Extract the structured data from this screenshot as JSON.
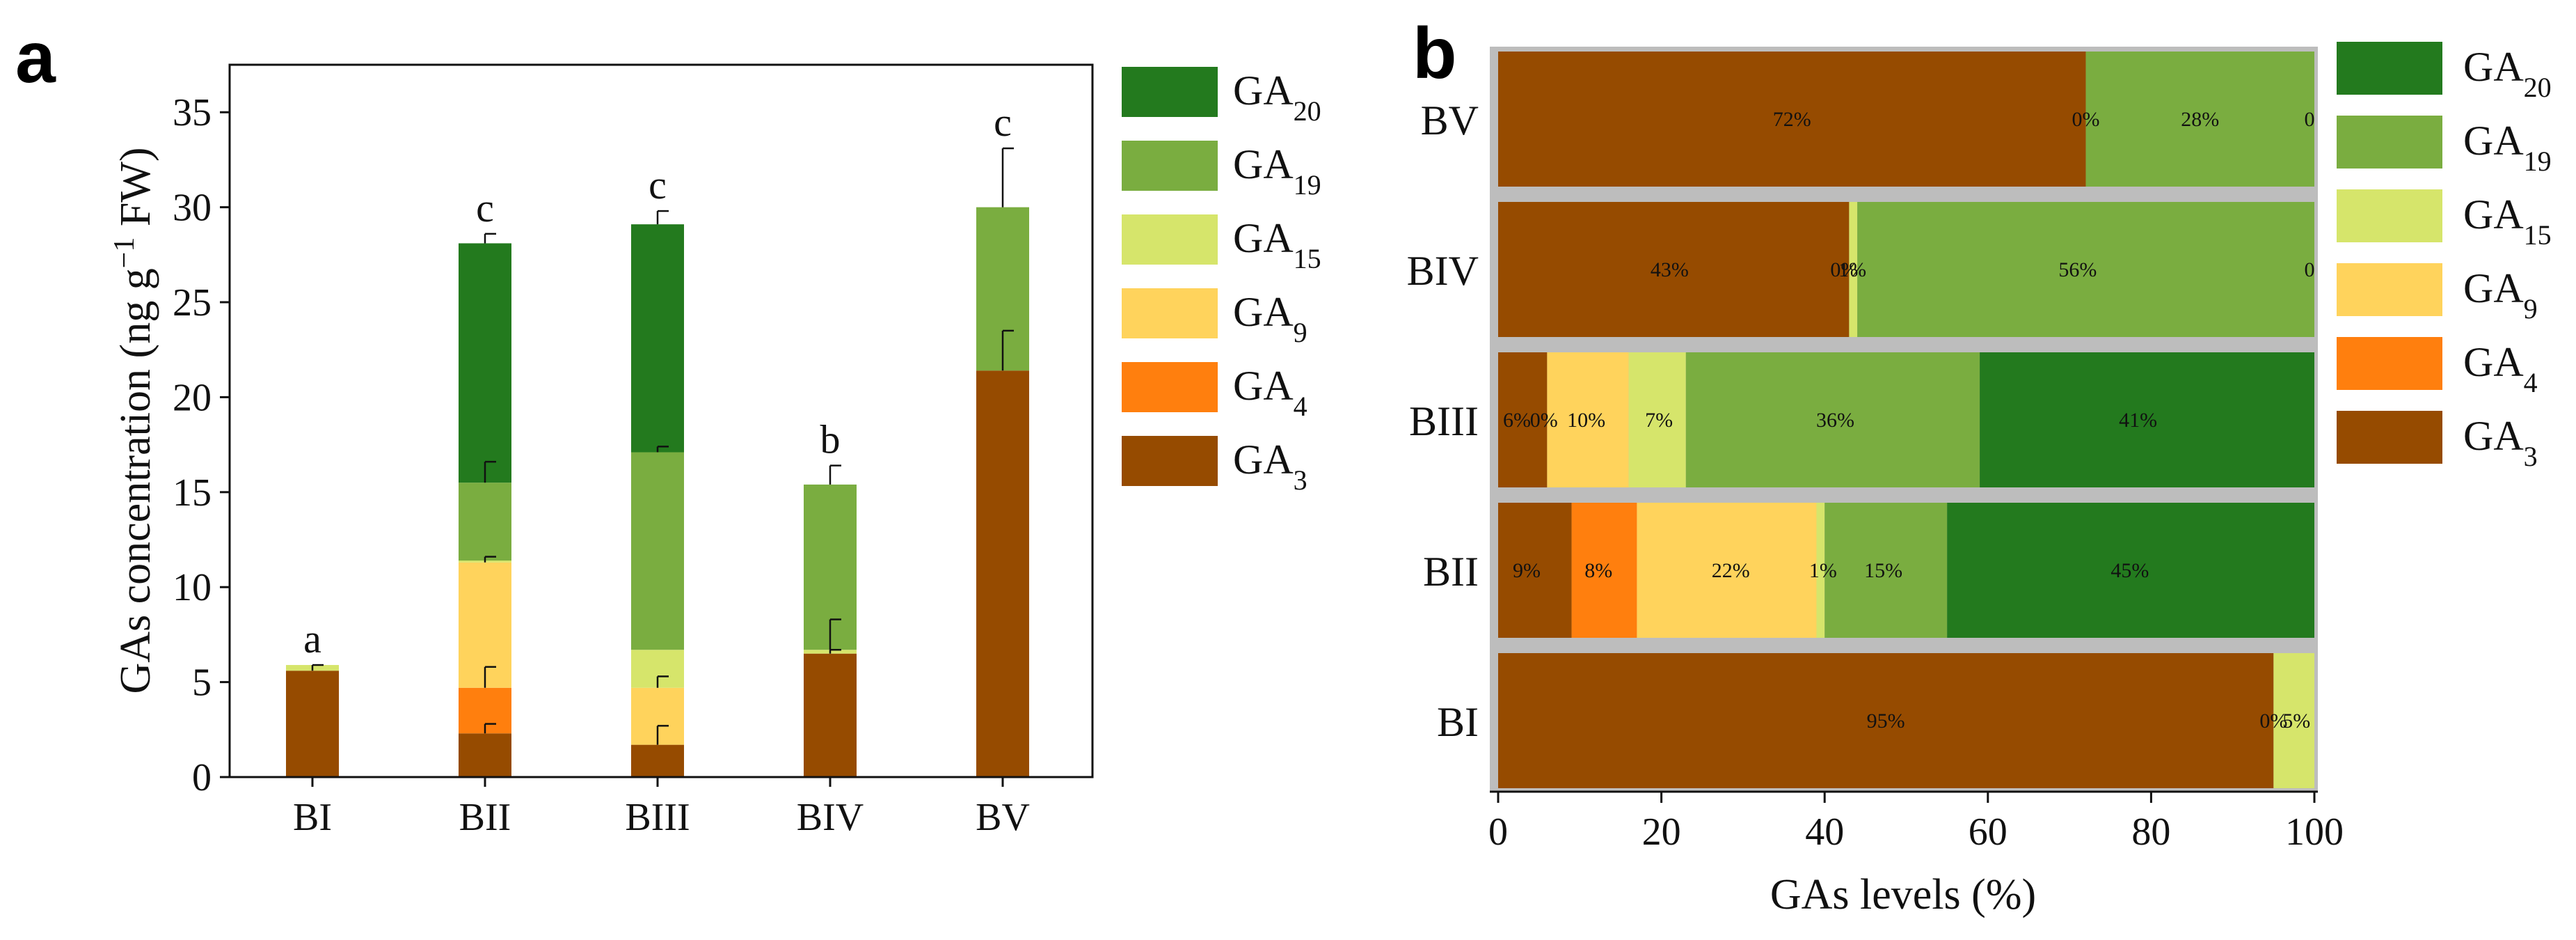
{
  "panels": {
    "a": {
      "label": "a"
    },
    "b": {
      "label": "b"
    }
  },
  "series_meta": [
    {
      "key": "GA3",
      "base": "GA",
      "sub": "3",
      "color": "#964B00"
    },
    {
      "key": "GA4",
      "base": "GA",
      "sub": "4",
      "color": "#FF7F0E"
    },
    {
      "key": "GA9",
      "base": "GA",
      "sub": "9",
      "color": "#FFD35C"
    },
    {
      "key": "GA15",
      "base": "GA",
      "sub": "15",
      "color": "#D6E56B"
    },
    {
      "key": "GA19",
      "base": "GA",
      "sub": "19",
      "color": "#7AAD40"
    },
    {
      "key": "GA20",
      "base": "GA",
      "sub": "20",
      "color": "#237A1E"
    }
  ],
  "chart_data": [
    {
      "type": "bar",
      "stacked": true,
      "panel": "a",
      "categories": [
        "BI",
        "BII",
        "BIII",
        "BIV",
        "BV"
      ],
      "ylabel_main": "GAs concentration (ng g",
      "ylabel_sup": "−1",
      "ylabel_end": " FW)",
      "xlabel": "",
      "ylim": [
        0,
        37.5
      ],
      "yticks": [
        0,
        5,
        10,
        15,
        20,
        25,
        30,
        35
      ],
      "legend_position": "right",
      "series": [
        {
          "name": "GA3",
          "values": [
            5.6,
            2.3,
            1.7,
            6.5,
            21.4
          ],
          "errors": [
            0.3,
            0.5,
            1.0,
            0.2,
            2.1
          ]
        },
        {
          "name": "GA4",
          "values": [
            0,
            2.4,
            0,
            0,
            0
          ],
          "errors": [
            0,
            1.1,
            0,
            0,
            0
          ]
        },
        {
          "name": "GA9",
          "values": [
            0,
            6.6,
            3.0,
            0,
            0
          ],
          "errors": [
            0,
            0.3,
            0.6,
            0,
            0
          ]
        },
        {
          "name": "GA15",
          "values": [
            0.3,
            0.1,
            2.0,
            0.2,
            0
          ],
          "errors": [
            0,
            0,
            0,
            1.6,
            0
          ]
        },
        {
          "name": "GA19",
          "values": [
            0,
            4.1,
            10.4,
            8.7,
            8.6
          ],
          "errors": [
            0,
            1.1,
            0.3,
            1.0,
            3.1
          ]
        },
        {
          "name": "GA20",
          "values": [
            0,
            12.6,
            12.0,
            0,
            0
          ],
          "errors": [
            0,
            0.5,
            0.7,
            0,
            0
          ]
        }
      ],
      "annotations": [
        {
          "category": "BI",
          "text": "a"
        },
        {
          "category": "BII",
          "text": "c"
        },
        {
          "category": "BIII",
          "text": "c"
        },
        {
          "category": "BIV",
          "text": "b"
        },
        {
          "category": "BV",
          "text": "c"
        }
      ]
    },
    {
      "type": "bar",
      "orientation": "horizontal",
      "stacked": true,
      "panel": "b",
      "categories": [
        "BV",
        "BIV",
        "BIII",
        "BII",
        "BI"
      ],
      "xlabel": "GAs levels (%)",
      "xlim": [
        0,
        100
      ],
      "xticks": [
        0,
        20,
        40,
        60,
        80,
        100
      ],
      "legend_position": "right",
      "series": [
        {
          "name": "GA3",
          "values": [
            72,
            43,
            6,
            9,
            95
          ]
        },
        {
          "name": "GA4",
          "values": [
            0,
            0,
            0,
            8,
            0
          ]
        },
        {
          "name": "GA9",
          "values": [
            0,
            0,
            10,
            22,
            0
          ]
        },
        {
          "name": "GA15",
          "values": [
            0,
            1,
            7,
            1,
            5
          ]
        },
        {
          "name": "GA19",
          "values": [
            28,
            56,
            36,
            15,
            0
          ]
        },
        {
          "name": "GA20",
          "values": [
            0,
            0,
            41,
            45,
            0
          ]
        }
      ],
      "data_labels": [
        [
          {
            "text": "72%",
            "at": 36
          },
          {
            "text": "0%",
            "at": 72
          },
          {
            "text": "28%",
            "at": 86
          },
          {
            "text": "0",
            "at": 99.4
          }
        ],
        [
          {
            "text": "43%",
            "at": 21
          },
          {
            "text": "0%",
            "at": 42.4
          },
          {
            "text": "1%",
            "at": 43.4
          },
          {
            "text": "56%",
            "at": 71
          },
          {
            "text": "0",
            "at": 99.4
          }
        ],
        [
          {
            "text": "6%",
            "at": 2.3
          },
          {
            "text": "0%",
            "at": 5.6
          },
          {
            "text": "10%",
            "at": 10.8
          },
          {
            "text": "7%",
            "at": 19.7
          },
          {
            "text": "36%",
            "at": 41.3
          },
          {
            "text": "41%",
            "at": 78.4
          }
        ],
        [
          {
            "text": "9%",
            "at": 3.5
          },
          {
            "text": "8%",
            "at": 12.3
          },
          {
            "text": "22%",
            "at": 28.5
          },
          {
            "text": "1%",
            "at": 39.8
          },
          {
            "text": "15%",
            "at": 47.2
          },
          {
            "text": "45%",
            "at": 77.4
          }
        ],
        [
          {
            "text": "95%",
            "at": 47.5
          },
          {
            "text": "0%",
            "at": 95
          },
          {
            "text": "5%",
            "at": 97.8
          }
        ]
      ]
    }
  ]
}
